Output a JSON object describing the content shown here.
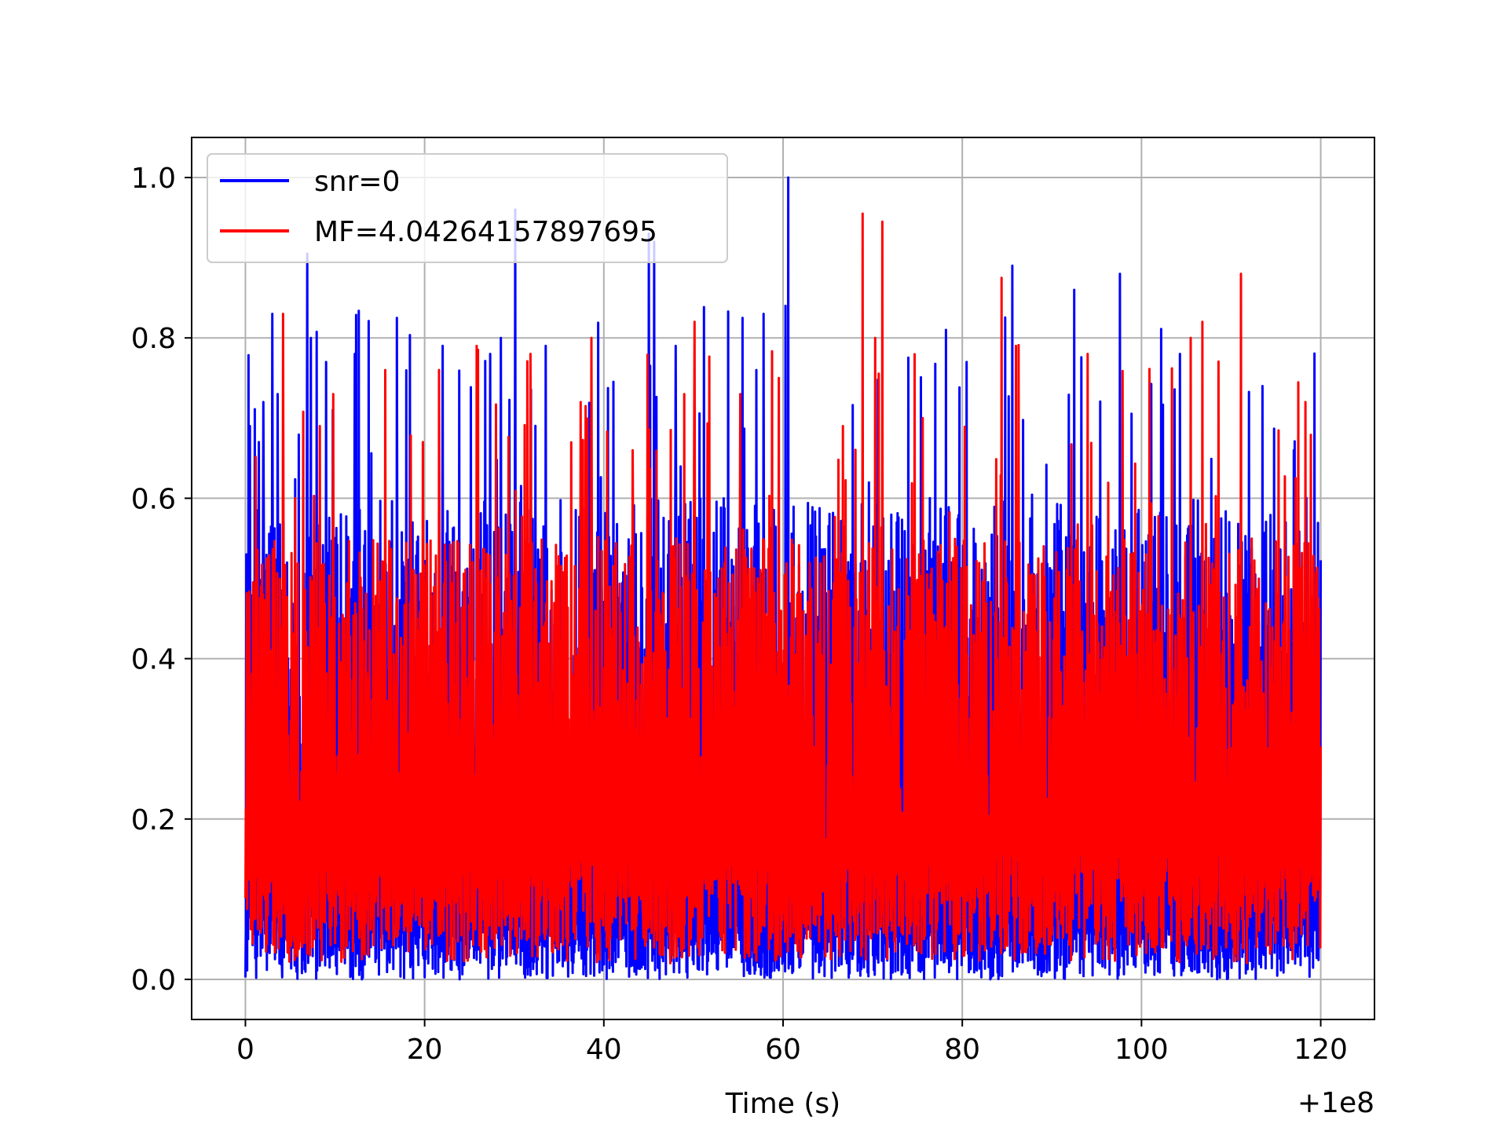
{
  "chart_data": {
    "type": "line",
    "title": "",
    "xlabel": "Time (s)",
    "ylabel": "",
    "x_offset_label": "+1e8",
    "xlim": [
      -6,
      126
    ],
    "ylim": [
      -0.05,
      1.05
    ],
    "x_range": [
      0,
      120
    ],
    "xticks": [
      0,
      20,
      40,
      60,
      80,
      100,
      120
    ],
    "xtick_labels": [
      "0",
      "20",
      "40",
      "60",
      "80",
      "100",
      "120"
    ],
    "yticks": [
      0.0,
      0.2,
      0.4,
      0.6,
      0.8,
      1.0
    ],
    "ytick_labels": [
      "0.0",
      "0.2",
      "0.4",
      "0.6",
      "0.8",
      "1.0"
    ],
    "grid": true,
    "legend_position": "top-left",
    "series": [
      {
        "name": "snr=0",
        "color": "#0000ff",
        "typical_range": [
          0.0,
          0.6
        ],
        "max": 1.0,
        "peaks": [
          {
            "x": 0.1,
            "y": 0.53
          },
          {
            "x": 0.5,
            "y": 0.69
          },
          {
            "x": 1.5,
            "y": 0.67
          },
          {
            "x": 2.0,
            "y": 0.72
          },
          {
            "x": 3.0,
            "y": 0.83
          },
          {
            "x": 3.6,
            "y": 0.73
          },
          {
            "x": 6.9,
            "y": 0.905
          },
          {
            "x": 7.3,
            "y": 0.8
          },
          {
            "x": 9.0,
            "y": 0.77
          },
          {
            "x": 12.2,
            "y": 0.78
          },
          {
            "x": 16.9,
            "y": 0.825
          },
          {
            "x": 22.0,
            "y": 0.79
          },
          {
            "x": 27.3,
            "y": 0.78
          },
          {
            "x": 28.5,
            "y": 0.8
          },
          {
            "x": 30.1,
            "y": 0.96
          },
          {
            "x": 33.5,
            "y": 0.79
          },
          {
            "x": 45.0,
            "y": 0.93
          },
          {
            "x": 45.6,
            "y": 0.92
          },
          {
            "x": 48.0,
            "y": 0.79
          },
          {
            "x": 57.0,
            "y": 0.76
          },
          {
            "x": 57.8,
            "y": 0.83
          },
          {
            "x": 60.3,
            "y": 0.84
          },
          {
            "x": 60.6,
            "y": 1.0
          },
          {
            "x": 78.2,
            "y": 0.81
          },
          {
            "x": 80.5,
            "y": 0.77
          },
          {
            "x": 85.6,
            "y": 0.89
          },
          {
            "x": 92.5,
            "y": 0.86
          },
          {
            "x": 97.6,
            "y": 0.88
          },
          {
            "x": 113.5,
            "y": 0.74
          },
          {
            "x": 117.0,
            "y": 0.66
          }
        ]
      },
      {
        "name": "MF=4.04264157897695",
        "color": "#ff0000",
        "typical_range": [
          0.02,
          0.55
        ],
        "max": 0.955,
        "peaks": [
          {
            "x": 4.2,
            "y": 0.83
          },
          {
            "x": 8.3,
            "y": 0.69
          },
          {
            "x": 9.8,
            "y": 0.73
          },
          {
            "x": 15.6,
            "y": 0.76
          },
          {
            "x": 19.8,
            "y": 0.67
          },
          {
            "x": 21.6,
            "y": 0.76
          },
          {
            "x": 25.8,
            "y": 0.79
          },
          {
            "x": 31.8,
            "y": 0.78
          },
          {
            "x": 37.4,
            "y": 0.72
          },
          {
            "x": 38.6,
            "y": 0.8
          },
          {
            "x": 43.2,
            "y": 0.66
          },
          {
            "x": 50.1,
            "y": 0.82
          },
          {
            "x": 55.2,
            "y": 0.73
          },
          {
            "x": 59.5,
            "y": 0.75
          },
          {
            "x": 66.7,
            "y": 0.69
          },
          {
            "x": 68.9,
            "y": 0.955
          },
          {
            "x": 70.3,
            "y": 0.8
          },
          {
            "x": 71.1,
            "y": 0.945
          },
          {
            "x": 75.6,
            "y": 0.7
          },
          {
            "x": 84.4,
            "y": 0.875
          },
          {
            "x": 86.0,
            "y": 0.79
          },
          {
            "x": 94.0,
            "y": 0.78
          },
          {
            "x": 105.5,
            "y": 0.8
          },
          {
            "x": 106.8,
            "y": 0.82
          },
          {
            "x": 111.1,
            "y": 0.88
          },
          {
            "x": 118.3,
            "y": 0.72
          }
        ]
      }
    ]
  }
}
